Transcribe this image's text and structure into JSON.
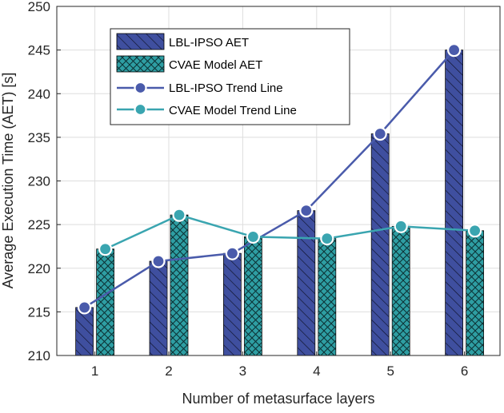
{
  "chart_data": {
    "type": "bar",
    "title": "",
    "xlabel": "Number of metasurface layers",
    "ylabel": "Average Execution Time (AET) [s]",
    "categories": [
      "1",
      "2",
      "3",
      "4",
      "5",
      "6"
    ],
    "ylim": [
      210,
      250
    ],
    "yticks": [
      210,
      215,
      220,
      225,
      230,
      235,
      240,
      245,
      250
    ],
    "grid": true,
    "legend_position": "top-left",
    "series": [
      {
        "name": "LBL-IPSO AET",
        "kind": "bar",
        "values": [
          215.5,
          220.8,
          221.7,
          226.6,
          235.4,
          245.0
        ],
        "color": "#3f4f9f",
        "hatch": "diagonal"
      },
      {
        "name": "CVAE Model AET",
        "kind": "bar",
        "values": [
          222.2,
          226.1,
          223.6,
          223.4,
          224.8,
          224.3
        ],
        "color": "#2e9ea3",
        "hatch": "crosshatch"
      },
      {
        "name": "LBL-IPSO Trend Line",
        "kind": "line",
        "values": [
          215.5,
          220.8,
          221.7,
          226.6,
          235.4,
          245.0
        ],
        "color": "#4a5bab"
      },
      {
        "name": "CVAE Model Trend Line",
        "kind": "line",
        "values": [
          222.2,
          226.1,
          223.6,
          223.4,
          224.8,
          224.3
        ],
        "color": "#3aa5b0"
      }
    ]
  }
}
